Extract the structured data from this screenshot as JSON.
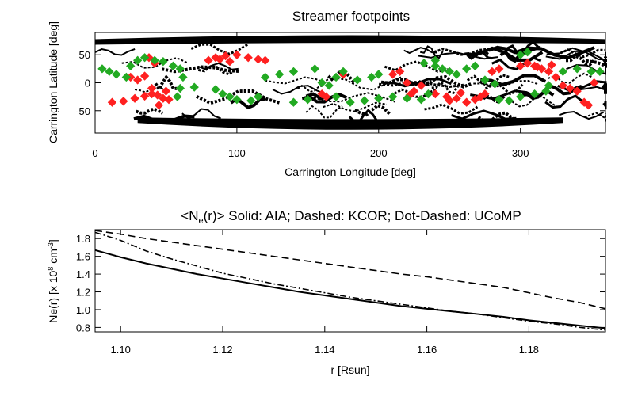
{
  "chart_data": [
    {
      "type": "scatter",
      "title": "Streamer footpoints",
      "xlabel": "Carrington Longitude [deg]",
      "ylabel": "Carrington Latitude [deg]",
      "xlim": [
        0,
        360
      ],
      "ylim": [
        -90,
        90
      ],
      "xticks": [
        0,
        100,
        200,
        300
      ],
      "yticks": [
        -50,
        0,
        50
      ],
      "grid": false,
      "colors": {
        "background_features": "#000000",
        "series_a": "#ff2020",
        "series_b": "#22aa22"
      },
      "series": [
        {
          "color": "#ff2020",
          "points": [
            [
              12,
              -35
            ],
            [
              20,
              -33
            ],
            [
              28,
              -28
            ],
            [
              35,
              -24
            ],
            [
              40,
              -20
            ],
            [
              44,
              -22
            ],
            [
              48,
              -28
            ],
            [
              52,
              -30
            ],
            [
              45,
              -40
            ],
            [
              40,
              -10
            ],
            [
              30,
              5
            ],
            [
              25,
              10
            ],
            [
              35,
              12
            ],
            [
              38,
              45
            ],
            [
              42,
              35
            ],
            [
              50,
              -15
            ],
            [
              80,
              40
            ],
            [
              85,
              45
            ],
            [
              92,
              48
            ],
            [
              100,
              50
            ],
            [
              108,
              45
            ],
            [
              115,
              42
            ],
            [
              120,
              40
            ],
            [
              95,
              38
            ],
            [
              88,
              42
            ],
            [
              160,
              -20
            ],
            [
              163,
              -25
            ],
            [
              175,
              15
            ],
            [
              220,
              0
            ],
            [
              225,
              -15
            ],
            [
              230,
              -5
            ],
            [
              222,
              -22
            ],
            [
              240,
              -20
            ],
            [
              248,
              -25
            ],
            [
              255,
              -28
            ],
            [
              262,
              -35
            ],
            [
              268,
              -30
            ],
            [
              272,
              -25
            ],
            [
              258,
              -18
            ],
            [
              250,
              -32
            ],
            [
              275,
              -20
            ],
            [
              280,
              20
            ],
            [
              285,
              25
            ],
            [
              300,
              30
            ],
            [
              305,
              35
            ],
            [
              310,
              30
            ],
            [
              315,
              25
            ],
            [
              320,
              20
            ],
            [
              325,
              10
            ],
            [
              330,
              -5
            ],
            [
              335,
              -10
            ],
            [
              340,
              -15
            ],
            [
              322,
              32
            ],
            [
              312,
              28
            ],
            [
              345,
              -35
            ],
            [
              348,
              -40
            ],
            [
              352,
              0
            ],
            [
              210,
              15
            ],
            [
              215,
              20
            ]
          ]
        },
        {
          "color": "#22aa22",
          "points": [
            [
              5,
              25
            ],
            [
              10,
              20
            ],
            [
              15,
              15
            ],
            [
              22,
              10
            ],
            [
              25,
              30
            ],
            [
              30,
              40
            ],
            [
              35,
              45
            ],
            [
              42,
              40
            ],
            [
              48,
              38
            ],
            [
              55,
              30
            ],
            [
              60,
              25
            ],
            [
              62,
              10
            ],
            [
              58,
              -25
            ],
            [
              60,
              -10
            ],
            [
              70,
              -8
            ],
            [
              85,
              -12
            ],
            [
              90,
              -20
            ],
            [
              95,
              -25
            ],
            [
              100,
              -30
            ],
            [
              110,
              -32
            ],
            [
              115,
              -25
            ],
            [
              120,
              10
            ],
            [
              130,
              15
            ],
            [
              140,
              20
            ],
            [
              155,
              25
            ],
            [
              160,
              0
            ],
            [
              165,
              -5
            ],
            [
              170,
              -25
            ],
            [
              180,
              -35
            ],
            [
              190,
              -32
            ],
            [
              200,
              -28
            ],
            [
              210,
              -25
            ],
            [
              220,
              -28
            ],
            [
              230,
              -30
            ],
            [
              235,
              -20
            ],
            [
              170,
              10
            ],
            [
              175,
              20
            ],
            [
              185,
              5
            ],
            [
              195,
              10
            ],
            [
              200,
              15
            ],
            [
              240,
              30
            ],
            [
              245,
              25
            ],
            [
              250,
              20
            ],
            [
              255,
              15
            ],
            [
              262,
              25
            ],
            [
              268,
              30
            ],
            [
              275,
              5
            ],
            [
              282,
              -2
            ],
            [
              285,
              -30
            ],
            [
              292,
              -32
            ],
            [
              300,
              -25
            ],
            [
              310,
              -20
            ],
            [
              318,
              -15
            ],
            [
              320,
              -5
            ],
            [
              330,
              20
            ],
            [
              340,
              25
            ],
            [
              350,
              20
            ],
            [
              356,
              20
            ],
            [
              240,
              40
            ],
            [
              232,
              35
            ],
            [
              140,
              -35
            ],
            [
              150,
              -30
            ],
            [
              300,
              50
            ],
            [
              305,
              55
            ]
          ]
        }
      ]
    },
    {
      "type": "line",
      "title": "<N_e(r)>   Solid: AIA; Dashed: KCOR; Dot-Dashed: UCoMP",
      "title_parts": {
        "prefix": "<N",
        "subscript": "e",
        "suffix": "(r)>   Solid: AIA; Dashed: KCOR; Dot-Dashed: UCoMP"
      },
      "xlabel": "r [Rsun]",
      "ylabel": "Ne(r) [x 10^8 cm^-3]",
      "ylabel_parts": {
        "base": "Ne(r) [x 10",
        "sup1": "8",
        "mid": " cm",
        "sup2": "-3",
        "end": "]"
      },
      "xlim": [
        1.095,
        1.195
      ],
      "ylim": [
        0.75,
        1.9
      ],
      "xticks": [
        1.1,
        1.12,
        1.14,
        1.16,
        1.18
      ],
      "yticks": [
        0.8,
        1.0,
        1.2,
        1.4,
        1.6,
        1.8
      ],
      "grid": false,
      "x": [
        1.095,
        1.1,
        1.105,
        1.11,
        1.115,
        1.12,
        1.125,
        1.13,
        1.135,
        1.14,
        1.145,
        1.15,
        1.155,
        1.16,
        1.165,
        1.17,
        1.175,
        1.18,
        1.185,
        1.19,
        1.195
      ],
      "series": [
        {
          "style": "solid",
          "values": [
            1.67,
            1.59,
            1.52,
            1.46,
            1.4,
            1.35,
            1.3,
            1.25,
            1.2,
            1.16,
            1.12,
            1.08,
            1.04,
            1.01,
            0.98,
            0.95,
            0.92,
            0.88,
            0.85,
            0.82,
            0.79
          ]
        },
        {
          "style": "dashed",
          "values": [
            1.89,
            1.85,
            1.8,
            1.76,
            1.72,
            1.68,
            1.64,
            1.6,
            1.56,
            1.52,
            1.48,
            1.44,
            1.4,
            1.37,
            1.33,
            1.29,
            1.25,
            1.19,
            1.13,
            1.08,
            1.01
          ]
        },
        {
          "style": "dot-dashed",
          "values": [
            1.87,
            1.78,
            1.66,
            1.57,
            1.49,
            1.41,
            1.35,
            1.29,
            1.24,
            1.19,
            1.14,
            1.1,
            1.06,
            1.02,
            0.98,
            0.95,
            0.91,
            0.87,
            0.84,
            0.8,
            0.77
          ]
        }
      ]
    }
  ]
}
